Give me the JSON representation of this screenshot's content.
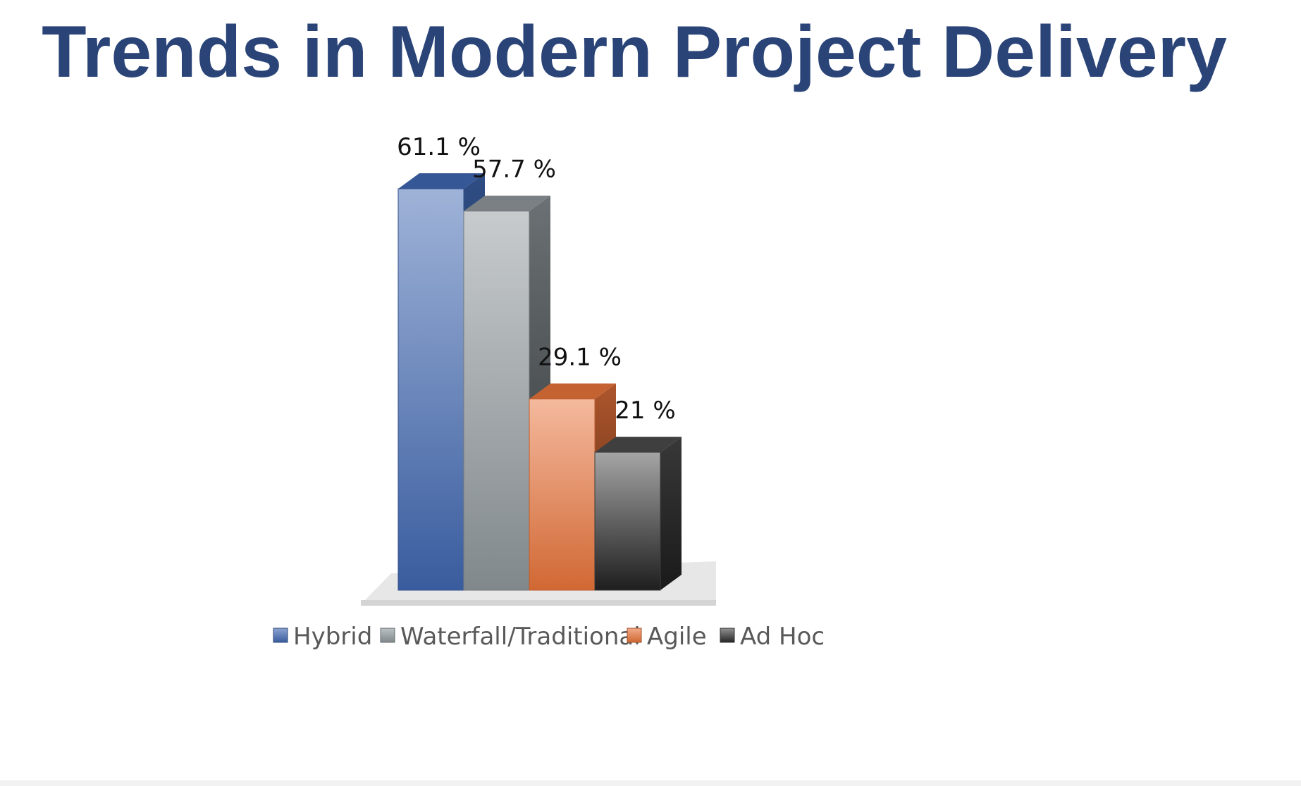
{
  "title": "Trends in Modern Project Delivery",
  "chart_data": {
    "type": "bar",
    "title": "",
    "xlabel": "",
    "ylabel": "",
    "ylim": [
      0,
      61.1
    ],
    "grid": false,
    "legend_position": "bottom",
    "categories": [
      "Hybrid",
      "Waterfall/Traditional",
      "Agile",
      "Ad Hoc"
    ],
    "values": [
      61.1,
      57.7,
      29.1,
      21
    ],
    "data_labels": [
      "61.1 %",
      "57.7 %",
      "29.1 %",
      "21 %"
    ],
    "colors": [
      "#3f66b0",
      "#8f979b",
      "#e8733a",
      "#4a4a4a"
    ]
  }
}
